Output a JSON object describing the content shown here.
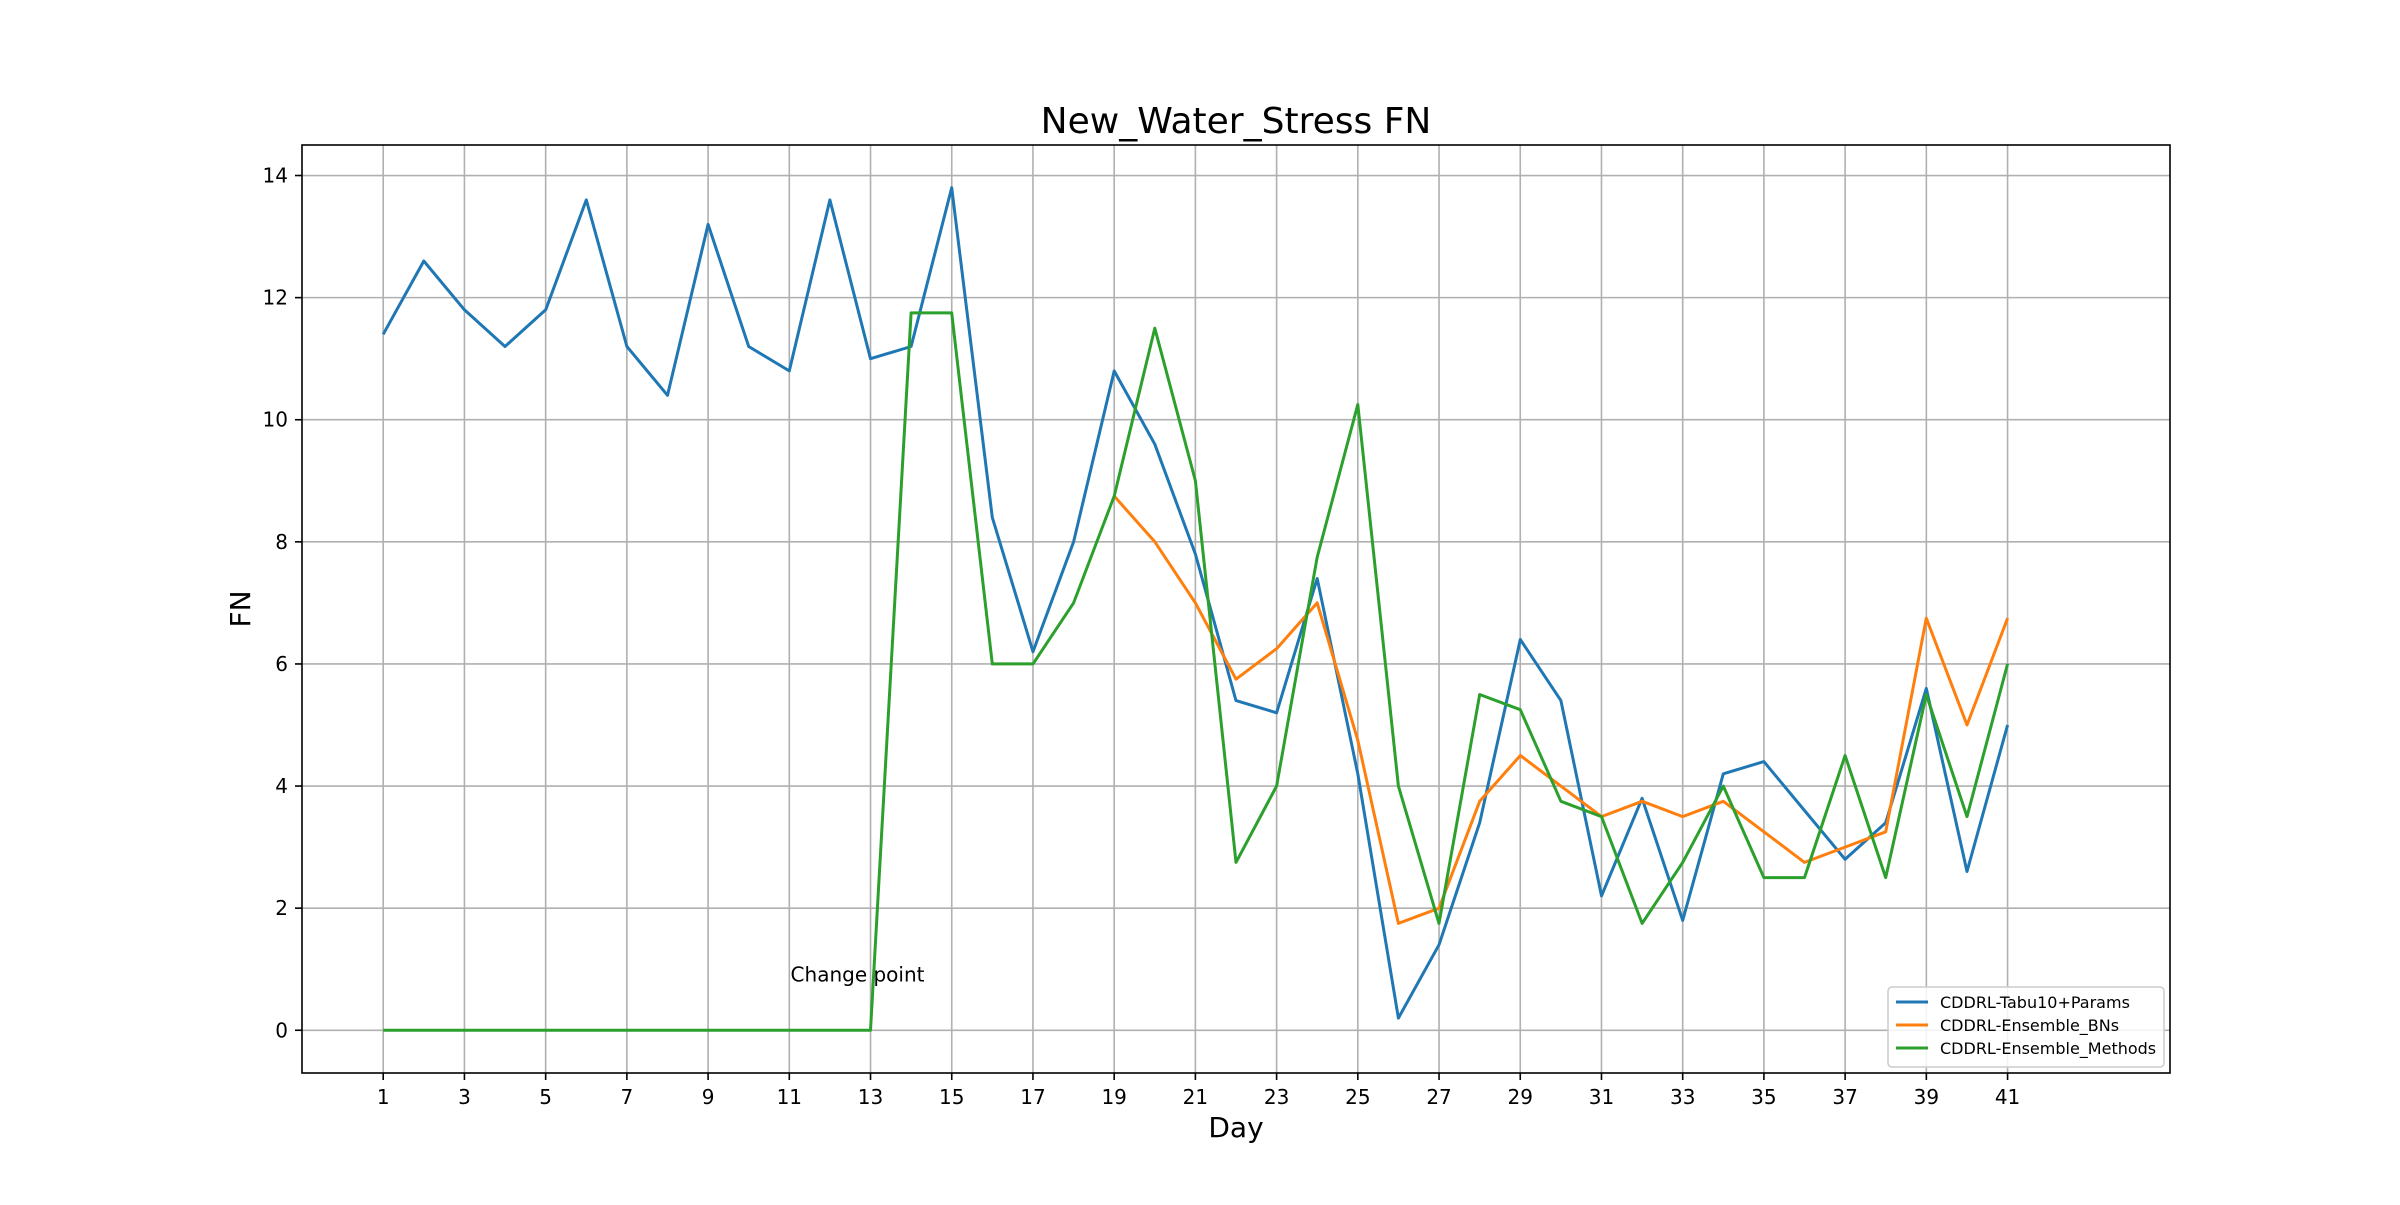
{
  "chart_data": {
    "type": "line",
    "title": "New_Water_Stress FN",
    "xlabel": "Day",
    "ylabel": "FN",
    "xlim": [
      -1,
      45
    ],
    "ylim": [
      -0.7,
      14.5
    ],
    "xticks": [
      1,
      3,
      5,
      7,
      9,
      11,
      13,
      15,
      17,
      19,
      21,
      23,
      25,
      27,
      29,
      31,
      33,
      35,
      37,
      39,
      41
    ],
    "yticks": [
      0,
      2,
      4,
      6,
      8,
      10,
      12,
      14
    ],
    "grid": true,
    "legend_position": "lower-right",
    "annotations": [
      {
        "text": "Change point",
        "x": 13,
        "y": 0.8
      }
    ],
    "series": [
      {
        "name": "CDDRL-Tabu10+Params",
        "color": "#1f77b4",
        "x": [
          1,
          2,
          3,
          4,
          5,
          6,
          7,
          8,
          9,
          10,
          11,
          12,
          13,
          14,
          15,
          16,
          17,
          18,
          19,
          20,
          21,
          22,
          23,
          24,
          25,
          26,
          27,
          28,
          29,
          30,
          31,
          32,
          33,
          34,
          35,
          36,
          37,
          38,
          39,
          40,
          41
        ],
        "values": [
          11.4,
          12.6,
          11.8,
          11.2,
          11.8,
          13.6,
          11.2,
          10.4,
          13.2,
          11.2,
          10.8,
          13.6,
          11.0,
          11.2,
          13.8,
          8.4,
          6.2,
          8.0,
          10.8,
          9.6,
          7.8,
          5.4,
          5.2,
          7.4,
          4.2,
          0.2,
          1.4,
          3.4,
          6.4,
          5.4,
          2.2,
          3.8,
          1.8,
          4.2,
          4.4,
          3.6,
          2.8,
          3.4,
          5.6,
          2.6,
          5.0
        ]
      },
      {
        "name": "CDDRL-Ensemble_BNs",
        "color": "#ff7f0e",
        "x": [
          19,
          20,
          21,
          22,
          23,
          24,
          25,
          26,
          27,
          28,
          29,
          30,
          31,
          32,
          33,
          34,
          35,
          36,
          37,
          38,
          39,
          40,
          41
        ],
        "values": [
          8.75,
          8.0,
          7.0,
          5.75,
          6.25,
          7.0,
          4.75,
          1.75,
          2.0,
          3.75,
          4.5,
          4.0,
          3.5,
          3.75,
          3.5,
          3.75,
          3.25,
          2.75,
          3.0,
          3.25,
          6.75,
          5.0,
          6.75
        ]
      },
      {
        "name": "CDDRL-Ensemble_Methods",
        "color": "#2ca02c",
        "x": [
          1,
          2,
          3,
          4,
          5,
          6,
          7,
          8,
          9,
          10,
          11,
          12,
          13,
          14,
          15,
          16,
          17,
          18,
          19,
          20,
          21,
          22,
          23,
          24,
          25,
          26,
          27,
          28,
          29,
          30,
          31,
          32,
          33,
          34,
          35,
          36,
          37,
          38,
          39,
          40,
          41
        ],
        "values": [
          0,
          0,
          0,
          0,
          0,
          0,
          0,
          0,
          0,
          0,
          0,
          0,
          0,
          11.75,
          11.75,
          6.0,
          6.0,
          7.0,
          8.75,
          11.5,
          9.0,
          2.75,
          4.0,
          7.75,
          10.25,
          4.0,
          1.75,
          5.5,
          5.25,
          3.75,
          3.5,
          1.75,
          2.75,
          4.0,
          2.5,
          2.5,
          4.5,
          2.5,
          5.5,
          3.5,
          6.0
        ]
      }
    ]
  }
}
